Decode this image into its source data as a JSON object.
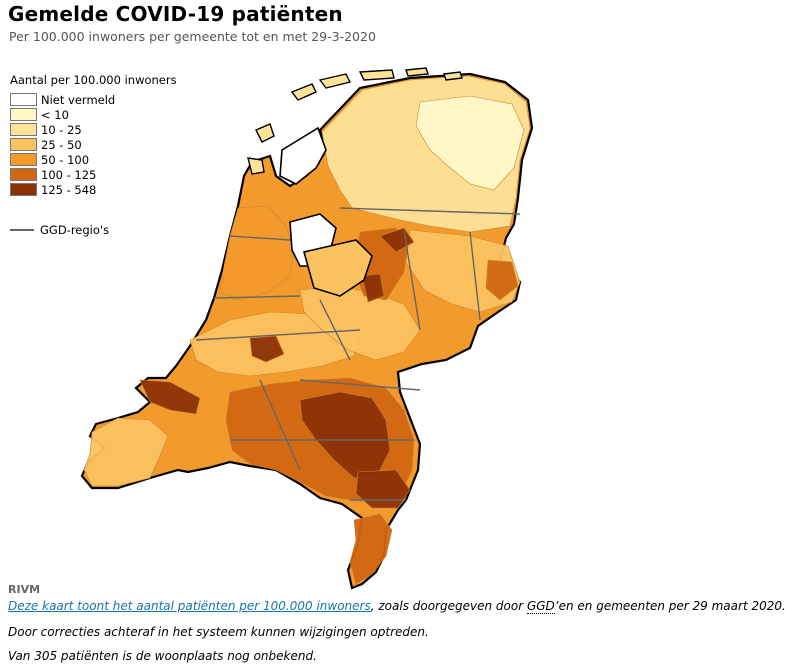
{
  "header": {
    "title": "Gemelde COVID-19 patiënten",
    "subtitle": "Per 100.000 inwoners per gemeente tot en met 29-3-2020"
  },
  "legend": {
    "title": "Aantal per 100.000 inwoners",
    "items": [
      {
        "label": "Niet vermeld",
        "color": "#ffffff"
      },
      {
        "label": "< 10",
        "color": "#fff8c8"
      },
      {
        "label": "10 - 25",
        "color": "#fde39a"
      },
      {
        "label": "25 - 50",
        "color": "#fbc260"
      },
      {
        "label": "50 - 100",
        "color": "#f39a2c"
      },
      {
        "label": "100 - 125",
        "color": "#d26612"
      },
      {
        "label": "125 - 548",
        "color": "#8c3107"
      }
    ],
    "ggd_label": "GGD-regio's"
  },
  "map": {
    "ggd_line_color": "#666666",
    "outline_color": "#000000"
  },
  "source": "RIVM",
  "notes": {
    "line1_link": "Deze kaart toont het aantal patiënten per 100.000 inwoners",
    "line1_mid": ", zoals doorgegeven door ",
    "line1_abbr": "GGD",
    "line1_end": "’en en gemeenten per 29 maart 2020.",
    "line2": "Door correcties achteraf in het systeem kunnen wijzigingen optreden.",
    "line3": "Van 305 patiënten is de woonplaats nog onbekend."
  }
}
